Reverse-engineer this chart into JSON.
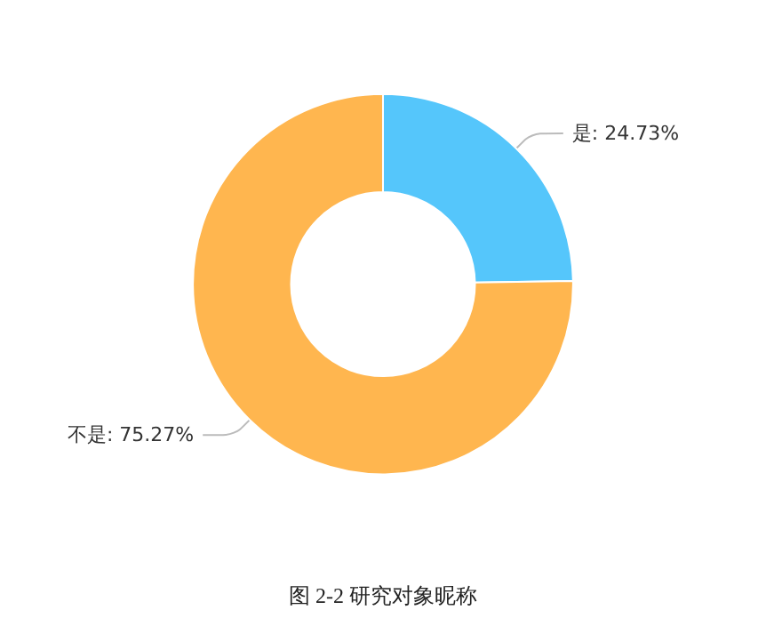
{
  "chart_data": {
    "type": "donut",
    "categories": [
      "是",
      "不是"
    ],
    "values": [
      24.73,
      75.27
    ],
    "colors": [
      "#55c6fb",
      "#ffb64f"
    ],
    "value_labels": [
      "24.73%",
      "75.27%"
    ],
    "legend": false,
    "annotations": [
      "图 2-2 研究对象昵称"
    ]
  }
}
